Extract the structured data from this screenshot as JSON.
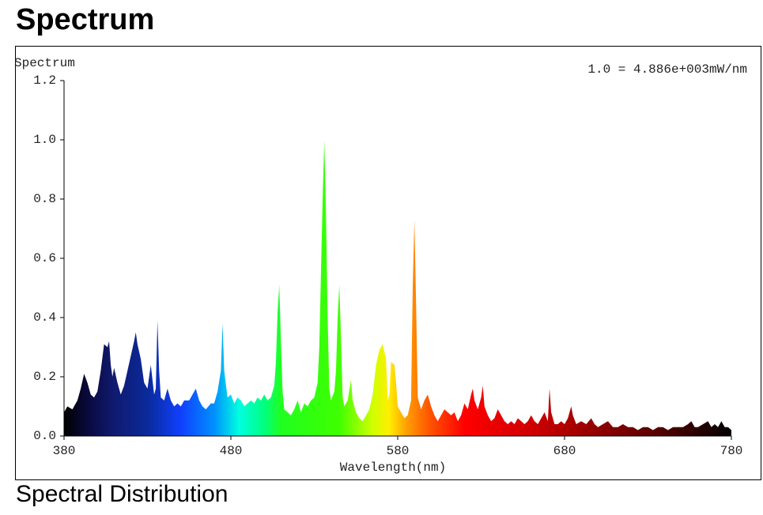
{
  "header": {
    "title": "Spectrum"
  },
  "caption": "Spectral Distribution",
  "chart_data": {
    "type": "area",
    "title": "Spectrum",
    "annotation": "1.0 = 4.886e+003mW/nm",
    "xlabel": "Wavelength(nm)",
    "x": [
      380,
      382,
      385,
      388,
      390,
      392,
      394,
      396,
      398,
      400,
      402,
      404,
      406,
      407,
      408,
      409,
      410,
      412,
      414,
      416,
      418,
      420,
      422,
      423,
      424,
      426,
      428,
      430,
      432,
      434,
      435,
      436,
      437,
      438,
      440,
      442,
      444,
      446,
      448,
      450,
      452,
      455,
      457,
      459,
      461,
      463,
      465,
      468,
      470,
      472,
      474,
      475,
      476,
      478,
      480,
      482,
      484,
      486,
      488,
      490,
      492,
      494,
      496,
      498,
      500,
      502,
      504,
      506,
      507,
      508,
      509,
      510,
      511,
      512,
      514,
      516,
      518,
      520,
      522,
      524,
      526,
      528,
      530,
      532,
      533,
      534,
      535,
      536,
      537,
      538,
      539,
      540,
      542,
      543,
      544,
      545,
      546,
      547,
      548,
      550,
      552,
      553,
      555,
      557,
      559,
      561,
      563,
      565,
      567,
      569,
      571,
      573,
      574,
      575,
      576,
      578,
      579,
      580,
      582,
      584,
      586,
      588,
      589,
      590,
      591,
      592,
      594,
      596,
      598,
      600,
      602,
      604,
      606,
      608,
      610,
      612,
      614,
      616,
      618,
      620,
      622,
      624,
      625,
      626,
      628,
      630,
      631,
      632,
      634,
      636,
      638,
      640,
      642,
      644,
      646,
      648,
      650,
      652,
      654,
      656,
      658,
      660,
      662,
      664,
      666,
      668,
      670,
      671,
      672,
      674,
      676,
      678,
      680,
      682,
      684,
      685,
      687,
      690,
      693,
      696,
      698,
      700,
      703,
      706,
      709,
      712,
      715,
      718,
      721,
      724,
      727,
      730,
      733,
      736,
      739,
      742,
      745,
      748,
      751,
      754,
      756,
      758,
      760,
      763,
      766,
      768,
      770,
      772,
      774,
      776,
      778,
      780
    ],
    "values": [
      0.08,
      0.1,
      0.09,
      0.12,
      0.16,
      0.21,
      0.18,
      0.14,
      0.13,
      0.15,
      0.22,
      0.31,
      0.3,
      0.32,
      0.24,
      0.2,
      0.23,
      0.18,
      0.14,
      0.17,
      0.22,
      0.27,
      0.32,
      0.35,
      0.31,
      0.26,
      0.18,
      0.16,
      0.24,
      0.14,
      0.16,
      0.39,
      0.22,
      0.13,
      0.12,
      0.16,
      0.12,
      0.1,
      0.11,
      0.1,
      0.12,
      0.12,
      0.14,
      0.16,
      0.12,
      0.1,
      0.09,
      0.11,
      0.11,
      0.15,
      0.22,
      0.38,
      0.22,
      0.13,
      0.14,
      0.11,
      0.13,
      0.12,
      0.1,
      0.11,
      0.12,
      0.11,
      0.13,
      0.12,
      0.14,
      0.12,
      0.13,
      0.17,
      0.25,
      0.42,
      0.51,
      0.32,
      0.15,
      0.09,
      0.08,
      0.07,
      0.09,
      0.12,
      0.08,
      0.11,
      0.1,
      0.12,
      0.13,
      0.18,
      0.3,
      0.55,
      0.8,
      1.0,
      0.75,
      0.4,
      0.16,
      0.12,
      0.15,
      0.22,
      0.4,
      0.51,
      0.33,
      0.13,
      0.1,
      0.12,
      0.19,
      0.12,
      0.08,
      0.06,
      0.05,
      0.07,
      0.09,
      0.14,
      0.24,
      0.29,
      0.31,
      0.26,
      0.12,
      0.14,
      0.25,
      0.24,
      0.18,
      0.1,
      0.08,
      0.06,
      0.07,
      0.12,
      0.5,
      0.73,
      0.45,
      0.13,
      0.09,
      0.12,
      0.14,
      0.1,
      0.07,
      0.05,
      0.07,
      0.09,
      0.08,
      0.07,
      0.08,
      0.05,
      0.07,
      0.11,
      0.09,
      0.14,
      0.16,
      0.12,
      0.09,
      0.13,
      0.17,
      0.1,
      0.07,
      0.05,
      0.06,
      0.09,
      0.07,
      0.05,
      0.04,
      0.05,
      0.04,
      0.06,
      0.05,
      0.04,
      0.05,
      0.07,
      0.05,
      0.04,
      0.06,
      0.08,
      0.05,
      0.16,
      0.08,
      0.04,
      0.04,
      0.05,
      0.04,
      0.06,
      0.1,
      0.07,
      0.04,
      0.05,
      0.04,
      0.06,
      0.04,
      0.03,
      0.04,
      0.05,
      0.03,
      0.03,
      0.04,
      0.03,
      0.03,
      0.02,
      0.03,
      0.03,
      0.02,
      0.03,
      0.03,
      0.02,
      0.03,
      0.03,
      0.03,
      0.04,
      0.05,
      0.03,
      0.03,
      0.04,
      0.05,
      0.03,
      0.04,
      0.03,
      0.05,
      0.03,
      0.03,
      0.02
    ],
    "xlim": [
      380,
      780
    ],
    "xticks": [
      380,
      480,
      580,
      680,
      780
    ],
    "ylim": [
      0,
      1.2
    ],
    "yticks": [
      {
        "value": 0,
        "label": "0.0"
      },
      0.2,
      0.4,
      0.6,
      0.8,
      {
        "value": 1,
        "label": "1.0"
      },
      1.2
    ]
  }
}
